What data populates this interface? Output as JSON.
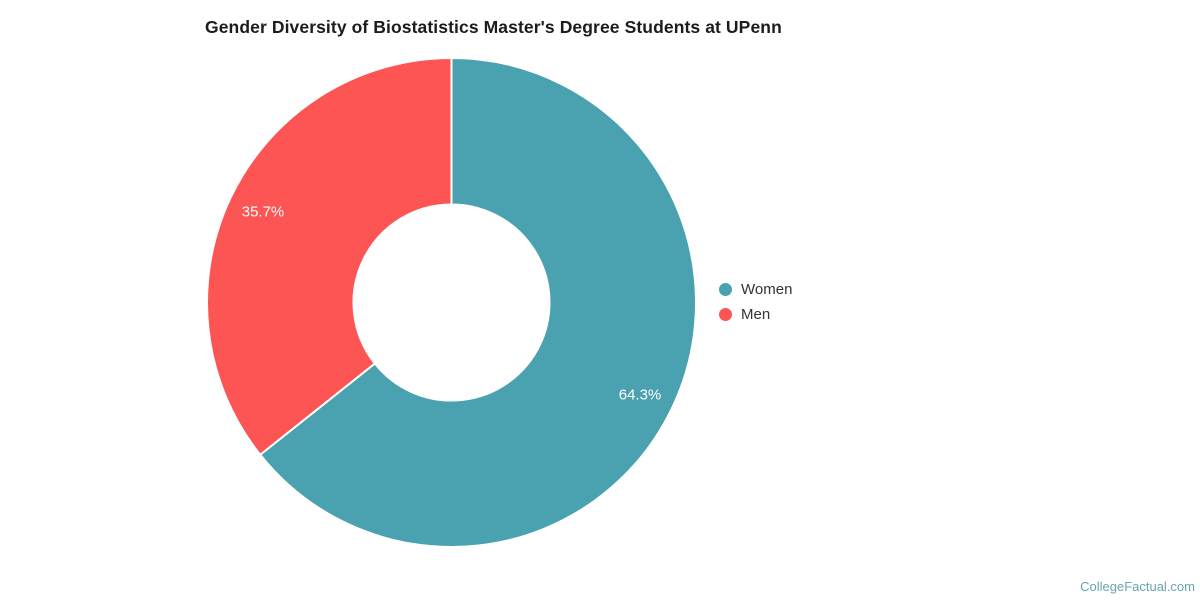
{
  "title": "Gender Diversity of Biostatistics Master's Degree Students at UPenn",
  "watermark": "CollegeFactual.com",
  "chart_data": {
    "type": "pie",
    "subtype": "donut",
    "title": "Gender Diversity of Biostatistics Master's Degree Students at UPenn",
    "categories": [
      "Women",
      "Men"
    ],
    "values": [
      64.3,
      35.7
    ],
    "unit": "%",
    "slice_labels": [
      "64.3%",
      "35.7%"
    ],
    "colors": [
      "#4aa2b0",
      "#fd5454"
    ],
    "start_angle_deg": 0,
    "direction": "clockwise",
    "inner_radius_ratio": 0.4,
    "legend": {
      "position": "right",
      "entries": [
        "Women",
        "Men"
      ]
    }
  }
}
